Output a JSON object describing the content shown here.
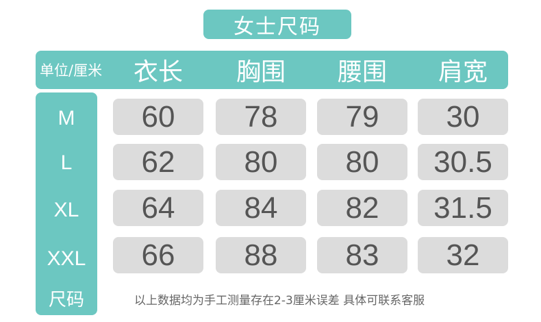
{
  "title": "女士尺码",
  "header": {
    "unit": "单位/厘米",
    "columns": [
      "衣长",
      "胸围",
      "腰围",
      "肩宽"
    ]
  },
  "rows": [
    {
      "size": "M",
      "values": [
        "60",
        "78",
        "79",
        "30"
      ]
    },
    {
      "size": "L",
      "values": [
        "62",
        "80",
        "80",
        "30.5"
      ]
    },
    {
      "size": "XL",
      "values": [
        "64",
        "84",
        "82",
        "31.5"
      ]
    },
    {
      "size": "XXL",
      "values": [
        "66",
        "88",
        "83",
        "32"
      ]
    }
  ],
  "size_label": "尺码",
  "note": "以上数据均为手工测量存在2-3厘米误差 具体可联系客服",
  "colors": {
    "accent": "#6cc7c1",
    "cell": "#dcdcdc",
    "value_text": "#555555"
  }
}
